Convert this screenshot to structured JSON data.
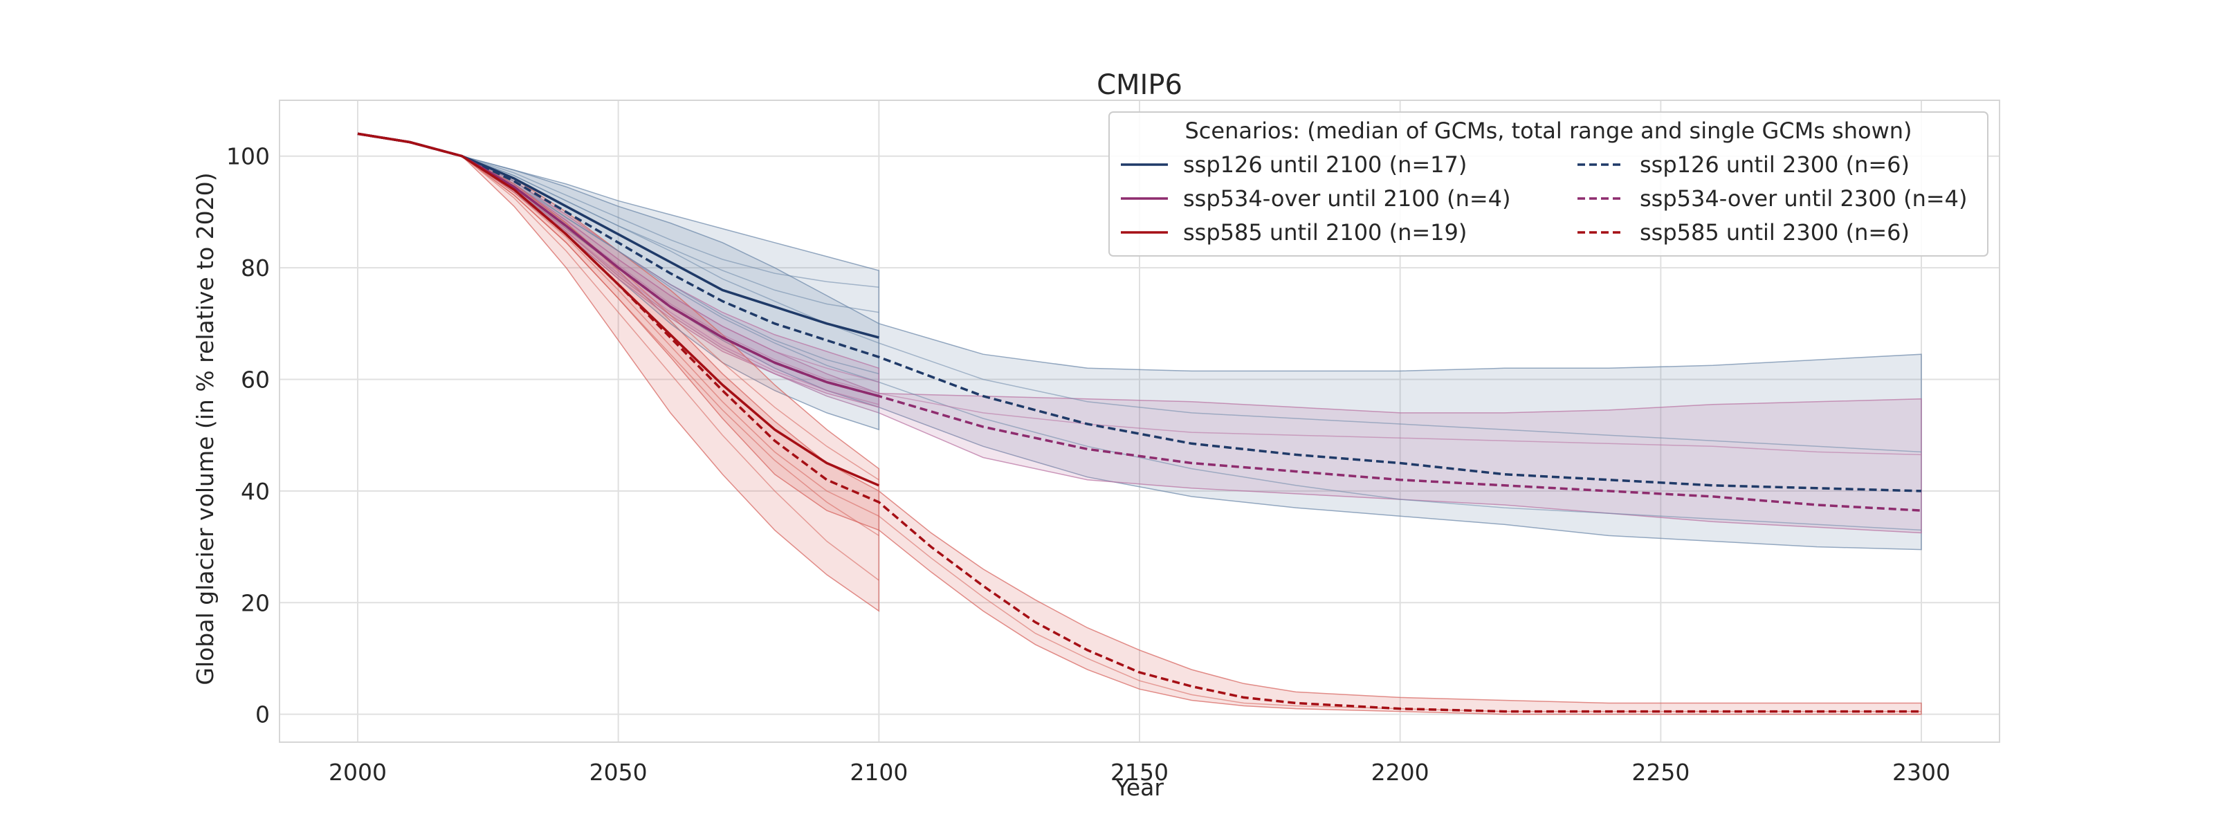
{
  "chart_data": {
    "type": "line",
    "title": "CMIP6",
    "xlabel": "Year",
    "ylabel": "Global glacier volume (in % relative to 2020)",
    "xlim": [
      1985,
      2315
    ],
    "ylim": [
      -5,
      110
    ],
    "xticks": [
      2000,
      2050,
      2100,
      2150,
      2200,
      2250,
      2300
    ],
    "yticks": [
      0,
      20,
      40,
      60,
      80,
      100
    ],
    "grid": true,
    "legend": {
      "title": "Scenarios: (median of GCMs, total range and single GCMs shown)",
      "placement": "top-right",
      "columns": 2
    },
    "series": [
      {
        "name": "ssp126 until 2100 (n=17)",
        "color": "#1f3a68",
        "style": "solid",
        "x": [
          2000,
          2010,
          2020,
          2030,
          2040,
          2050,
          2060,
          2070,
          2080,
          2090,
          2100
        ],
        "median": [
          104,
          102.5,
          100,
          96,
          91,
          86,
          81,
          76,
          73,
          70,
          67.5
        ],
        "low": [
          104,
          102.5,
          100,
          94,
          86,
          78,
          70,
          63,
          58,
          54,
          51
        ],
        "high": [
          104,
          102.5,
          100,
          97.5,
          95,
          92,
          89.5,
          87,
          84.5,
          82,
          79.5
        ],
        "members": [
          [
            104,
            102.5,
            100,
            97,
            93,
            89,
            85,
            81.5,
            79,
            77.5,
            76.5
          ],
          [
            104,
            102.5,
            100,
            95.5,
            89,
            83,
            77,
            71.5,
            67,
            63.5,
            61
          ],
          [
            104,
            102.5,
            100,
            96.5,
            92,
            87.5,
            83.5,
            79.5,
            76,
            73.5,
            72
          ]
        ]
      },
      {
        "name": "ssp534-over until 2100 (n=4)",
        "color": "#8e2c6e",
        "style": "solid",
        "x": [
          2000,
          2010,
          2020,
          2030,
          2040,
          2050,
          2060,
          2070,
          2080,
          2090,
          2100
        ],
        "median": [
          104,
          102.5,
          100,
          94.5,
          87.5,
          80,
          73,
          67.5,
          63,
          59.5,
          57
        ],
        "low": [
          104,
          102.5,
          100,
          93.5,
          86,
          78,
          71,
          65,
          61,
          57.5,
          55
        ],
        "high": [
          104,
          102.5,
          100,
          95.5,
          89.5,
          83,
          77,
          72,
          68,
          65,
          62
        ],
        "members": [
          [
            104,
            102.5,
            100,
            95,
            88.5,
            81.5,
            75,
            69.5,
            65,
            62,
            59.5
          ],
          [
            104,
            102.5,
            100,
            94,
            86.5,
            79,
            72,
            66,
            61.5,
            58,
            55.5
          ]
        ]
      },
      {
        "name": "ssp585 until 2100 (n=19)",
        "color": "#a50f15",
        "style": "solid",
        "x": [
          2000,
          2010,
          2020,
          2030,
          2040,
          2050,
          2060,
          2070,
          2080,
          2090,
          2100
        ],
        "median": [
          104,
          102.5,
          100,
          94,
          86,
          77,
          68,
          59,
          51,
          45,
          41
        ],
        "low": [
          104,
          102.5,
          100,
          91,
          80,
          67,
          54,
          43,
          33,
          25,
          18.5
        ],
        "high": [
          104,
          102.5,
          100,
          96,
          90,
          83,
          76,
          68,
          59,
          51,
          44
        ],
        "members": [
          [
            104,
            102.5,
            100,
            92.5,
            83,
            72,
            61,
            50,
            40,
            31,
            24
          ],
          [
            104,
            102.5,
            100,
            95,
            88,
            80,
            71.5,
            63,
            55,
            48,
            42
          ],
          [
            104,
            102.5,
            100,
            93,
            84.5,
            74.5,
            64.5,
            54.5,
            45.5,
            38,
            32
          ]
        ]
      },
      {
        "name": "ssp126 until 2300 (n=6)",
        "color": "#1f3a68",
        "style": "dashed",
        "x": [
          2000,
          2010,
          2020,
          2030,
          2040,
          2050,
          2060,
          2070,
          2080,
          2090,
          2100,
          2120,
          2140,
          2160,
          2180,
          2200,
          2220,
          2240,
          2260,
          2280,
          2300
        ],
        "median": [
          104,
          102.5,
          100,
          95.5,
          90,
          84.5,
          79,
          74,
          70,
          67,
          64,
          57,
          52,
          48.5,
          46.5,
          45,
          43,
          42,
          41,
          40.5,
          40
        ],
        "low": [
          104,
          102.5,
          100,
          94,
          87,
          80,
          73,
          67,
          62,
          58,
          55,
          48,
          42.5,
          39,
          37,
          35.5,
          34,
          32,
          31,
          30,
          29.5
        ],
        "high": [
          104,
          102.5,
          100,
          97.5,
          94.5,
          91,
          88,
          84.5,
          80,
          75,
          70,
          64.5,
          62,
          61.5,
          61.5,
          61.5,
          62,
          62,
          62.5,
          63.5,
          64.5
        ],
        "members": [
          [
            104,
            102.5,
            100,
            96.5,
            92,
            87.5,
            83,
            78,
            74,
            70,
            66.5,
            60,
            56,
            54,
            53,
            52,
            51,
            50,
            49,
            48,
            47
          ],
          [
            104,
            102.5,
            100,
            95,
            89,
            83,
            76.5,
            71,
            66.5,
            62.5,
            59.5,
            53,
            48,
            44,
            41,
            38.5,
            37,
            36,
            35,
            34,
            33
          ]
        ]
      },
      {
        "name": "ssp534-over until 2300 (n=4)",
        "color": "#8e2c6e",
        "style": "dashed",
        "x": [
          2000,
          2010,
          2020,
          2030,
          2040,
          2050,
          2060,
          2070,
          2080,
          2090,
          2100,
          2120,
          2140,
          2160,
          2180,
          2200,
          2220,
          2240,
          2260,
          2280,
          2300
        ],
        "median": [
          104,
          102.5,
          100,
          94.5,
          87.5,
          80,
          73,
          67.5,
          63,
          59.5,
          57,
          51.5,
          47.5,
          45,
          43.5,
          42,
          41,
          40,
          39,
          37.5,
          36.5
        ],
        "low": [
          104,
          102.5,
          100,
          94,
          86.5,
          78.5,
          71.5,
          65.5,
          61,
          57,
          54,
          46,
          42,
          40.5,
          39.5,
          38.5,
          37.5,
          36,
          34.5,
          33.5,
          32.5
        ],
        "high": [
          104,
          102.5,
          100,
          95,
          88.5,
          81.5,
          75,
          69.5,
          65,
          61,
          57.5,
          57,
          56.5,
          56,
          55,
          54,
          54,
          54.5,
          55.5,
          56,
          56.5
        ],
        "members": [
          [
            104,
            102.5,
            100,
            94.5,
            87.5,
            80.5,
            73.5,
            68,
            63.5,
            60,
            57.5,
            54,
            52,
            50.5,
            50,
            49.5,
            49,
            48.5,
            48,
            47,
            46.5
          ]
        ]
      },
      {
        "name": "ssp585 until 2300 (n=6)",
        "color": "#a50f15",
        "style": "dashed",
        "x": [
          2000,
          2010,
          2020,
          2030,
          2040,
          2050,
          2060,
          2070,
          2080,
          2090,
          2100,
          2110,
          2120,
          2130,
          2140,
          2150,
          2160,
          2170,
          2180,
          2200,
          2220,
          2240,
          2260,
          2280,
          2300
        ],
        "median": [
          104,
          102.5,
          100,
          94,
          86,
          77,
          67.5,
          58,
          49,
          42,
          38,
          30,
          23,
          16.5,
          11.5,
          7.5,
          5,
          3,
          2,
          1,
          0.5,
          0.5,
          0.5,
          0.5,
          0.5
        ],
        "low": [
          104,
          102.5,
          100,
          93,
          84.5,
          74.5,
          64,
          53,
          43,
          36.5,
          33,
          25.5,
          18.5,
          12.5,
          8,
          4.5,
          2.5,
          1.5,
          1,
          0.5,
          0,
          0,
          0,
          0,
          0
        ],
        "high": [
          104,
          102.5,
          100,
          95,
          88,
          79.5,
          70.5,
          61,
          52.5,
          45,
          40,
          32.5,
          26,
          20.5,
          15.5,
          11.5,
          8,
          5.5,
          4,
          3,
          2.5,
          2,
          2,
          2,
          2
        ],
        "members": [
          [
            104,
            102.5,
            100,
            93.5,
            85.5,
            76,
            66,
            56,
            47,
            40,
            35.5,
            28,
            21,
            14.5,
            10,
            6,
            3.5,
            2,
            1.5,
            1,
            0.5,
            0.5,
            0.5,
            0.5,
            0.5
          ]
        ]
      }
    ]
  }
}
